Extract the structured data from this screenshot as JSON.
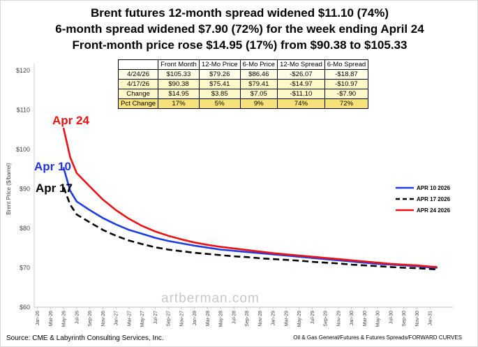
{
  "titles": {
    "line1": "Brent futures 12-month spread widened $11.10 (74%)",
    "line2": "6-month spread widened $7.90 (72%) for the week ending April 24",
    "line3": "Front-month price rose $14.95 (17%) from $90.38 to $105.33"
  },
  "table": {
    "headers": [
      "",
      "Front Month",
      "12-Mo Price",
      "6-Mo Price",
      "12-Mo Spread",
      "6-Mo Spread"
    ],
    "rows": [
      [
        "4/24/26",
        "$105.33",
        "$79.26",
        "$86.46",
        "-$26.07",
        "-$18.87"
      ],
      [
        "4/17/26",
        "$90.38",
        "$75.41",
        "$79.41",
        "-$14.97",
        "-$10.97"
      ],
      [
        "Change",
        "$14.95",
        "$3.85",
        "$7.05",
        "-$11.10",
        "-$7.90"
      ],
      [
        "Pct Change",
        "17%",
        "5%",
        "9%",
        "74%",
        "72%"
      ]
    ]
  },
  "annotations": {
    "apr24": {
      "text": "Apr 24",
      "color": "#ee1111"
    },
    "apr10": {
      "text": "Apr 10",
      "color": "#2233dd"
    },
    "apr17": {
      "text": "Apr 17",
      "color": "#000000"
    }
  },
  "watermark": "artberman.com",
  "footer": {
    "source": "Source: CME & Labyrinth Consulting Services, Inc.",
    "note": "Oil & Gas General/Futures & Futures Spreads/FORWARD CURVES"
  },
  "chart_data": {
    "type": "line",
    "title": "",
    "ylabel": "Brent Price ($/barrel)",
    "xlabel": "",
    "ylim": [
      60,
      120
    ],
    "yticks": [
      60,
      70,
      80,
      90,
      100,
      110,
      120
    ],
    "ytick_labels": [
      "$60",
      "$70",
      "$80",
      "$90",
      "$100",
      "$110",
      "$120"
    ],
    "x": [
      "Jan-26",
      "Mar-26",
      "May-26",
      "Jul-26",
      "Sep-26",
      "Nov-26",
      "Jan-27",
      "Mar-27",
      "May-27",
      "Jul-27",
      "Sep-27",
      "Nov-27",
      "Jan-28",
      "Mar-28",
      "May-28",
      "Jul-28",
      "Sep-28",
      "Nov-28",
      "Jan-29",
      "Mar-29",
      "May-29",
      "Jul-29",
      "Sep-29",
      "Nov-29",
      "Jan-30",
      "Mar-30",
      "May-30",
      "Jul-30",
      "Sep-30",
      "Nov-30",
      "Jan-31"
    ],
    "legend_placement": "right",
    "grid": false,
    "series": [
      {
        "name": "APR 10 2026",
        "color": "#1f3de0",
        "dash": "solid",
        "points": [
          [
            "May-26",
            95.3
          ],
          [
            "Jun-26",
            89.5
          ],
          [
            "Jul-26",
            86.8
          ],
          [
            "Sep-26",
            84.6
          ],
          [
            "Nov-26",
            82.6
          ],
          [
            "Jan-27",
            81.0
          ],
          [
            "Mar-27",
            79.6
          ],
          [
            "May-27",
            78.6
          ],
          [
            "Jul-27",
            77.6
          ],
          [
            "Sep-27",
            76.8
          ],
          [
            "Nov-27",
            76.2
          ],
          [
            "Jan-28",
            75.6
          ],
          [
            "Mar-28",
            75.1
          ],
          [
            "May-28",
            74.6
          ],
          [
            "Jul-28",
            74.3
          ],
          [
            "Sep-28",
            74.0
          ],
          [
            "Nov-28",
            73.7
          ],
          [
            "Jan-29",
            73.4
          ],
          [
            "Mar-29",
            73.1
          ],
          [
            "May-29",
            72.8
          ],
          [
            "Jul-29",
            72.5
          ],
          [
            "Sep-29",
            72.2
          ],
          [
            "Nov-29",
            71.9
          ],
          [
            "Jan-30",
            71.6
          ],
          [
            "Mar-30",
            71.3
          ],
          [
            "May-30",
            71.0
          ],
          [
            "Jul-30",
            70.8
          ],
          [
            "Sep-30",
            70.6
          ],
          [
            "Nov-30",
            70.4
          ],
          [
            "Jan-31",
            70.1
          ],
          [
            "Feb-31",
            70.0
          ]
        ]
      },
      {
        "name": "APR 17 2026",
        "color": "#000000",
        "dash": "dashed",
        "points": [
          [
            "May-26",
            90.4
          ],
          [
            "Jun-26",
            86.0
          ],
          [
            "Jul-26",
            83.5
          ],
          [
            "Sep-26",
            81.5
          ],
          [
            "Nov-26",
            79.6
          ],
          [
            "Jan-27",
            78.1
          ],
          [
            "Mar-27",
            76.9
          ],
          [
            "May-27",
            76.0
          ],
          [
            "Jul-27",
            75.2
          ],
          [
            "Sep-27",
            74.6
          ],
          [
            "Nov-27",
            74.2
          ],
          [
            "Jan-28",
            73.8
          ],
          [
            "Mar-28",
            73.5
          ],
          [
            "May-28",
            73.2
          ],
          [
            "Jul-28",
            72.9
          ],
          [
            "Sep-28",
            72.7
          ],
          [
            "Nov-28",
            72.4
          ],
          [
            "Jan-29",
            72.2
          ],
          [
            "Mar-29",
            72.0
          ],
          [
            "May-29",
            71.8
          ],
          [
            "Jul-29",
            71.5
          ],
          [
            "Sep-29",
            71.3
          ],
          [
            "Nov-29",
            71.1
          ],
          [
            "Jan-30",
            70.8
          ],
          [
            "Mar-30",
            70.6
          ],
          [
            "May-30",
            70.4
          ],
          [
            "Jul-30",
            70.2
          ],
          [
            "Sep-30",
            70.0
          ],
          [
            "Nov-30",
            69.9
          ],
          [
            "Jan-31",
            69.7
          ],
          [
            "Feb-31",
            69.6
          ]
        ]
      },
      {
        "name": "APR 24 2026",
        "color": "#ee1111",
        "dash": "solid",
        "points": [
          [
            "May-26",
            105.3
          ],
          [
            "Jun-26",
            98.0
          ],
          [
            "Jul-26",
            94.0
          ],
          [
            "Sep-26",
            90.6
          ],
          [
            "Nov-26",
            87.3
          ],
          [
            "Jan-27",
            84.6
          ],
          [
            "Mar-27",
            82.4
          ],
          [
            "May-27",
            80.6
          ],
          [
            "Jul-27",
            79.2
          ],
          [
            "Sep-27",
            78.1
          ],
          [
            "Nov-27",
            77.2
          ],
          [
            "Jan-28",
            76.4
          ],
          [
            "Mar-28",
            75.8
          ],
          [
            "May-28",
            75.3
          ],
          [
            "Jul-28",
            74.9
          ],
          [
            "Sep-28",
            74.5
          ],
          [
            "Nov-28",
            74.1
          ],
          [
            "Jan-29",
            73.7
          ],
          [
            "Mar-29",
            73.4
          ],
          [
            "May-29",
            73.1
          ],
          [
            "Jul-29",
            72.8
          ],
          [
            "Sep-29",
            72.5
          ],
          [
            "Nov-29",
            72.2
          ],
          [
            "Jan-30",
            71.9
          ],
          [
            "Mar-30",
            71.6
          ],
          [
            "May-30",
            71.3
          ],
          [
            "Jul-30",
            71.0
          ],
          [
            "Sep-30",
            70.8
          ],
          [
            "Nov-30",
            70.6
          ],
          [
            "Jan-31",
            70.3
          ],
          [
            "Feb-31",
            70.2
          ]
        ]
      }
    ]
  }
}
